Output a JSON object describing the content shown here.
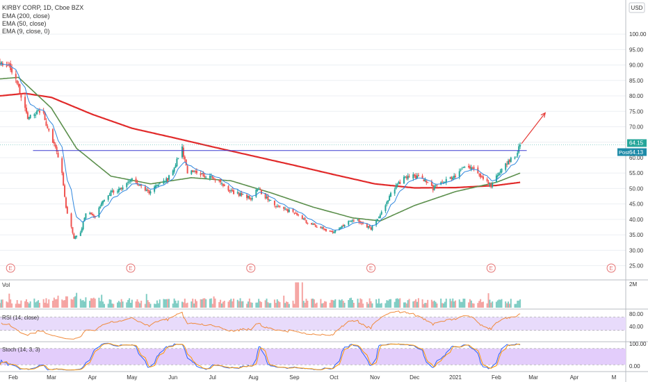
{
  "legend": {
    "title": "KIRBY CORP, 1D, Cboe BZX",
    "ema200": "EMA (200, close)",
    "ema50": "EMA (50, close)",
    "ema9": "EMA (9, close, 0)"
  },
  "price_axis": {
    "currency": "USD",
    "ticks": [
      "100.00",
      "95.00",
      "90.00",
      "85.00",
      "80.00",
      "75.00",
      "70.00",
      "65.00",
      "60.00",
      "55.00",
      "50.00",
      "45.00",
      "40.00",
      "35.00",
      "30.00",
      "25.00"
    ],
    "last_price_label": "64.15",
    "post_badge_prefix": "Post",
    "post_badge_value": "64.13"
  },
  "volume_pane": {
    "label": "Vol",
    "axis_label": "2M"
  },
  "rsi_pane": {
    "label": "RSI (14, close)",
    "ticks": [
      "80.00",
      "40.00"
    ]
  },
  "stoch_pane": {
    "label": "Stoch (14, 3, 3)",
    "ticks": [
      "100.00",
      "0.00"
    ]
  },
  "time_axis": {
    "labels": [
      "Feb",
      "Mar",
      "Apr",
      "May",
      "Jun",
      "Jul",
      "Aug",
      "Sep",
      "Oct",
      "Nov",
      "Dec",
      "2021",
      "Feb",
      "Mar",
      "Apr",
      "M"
    ]
  },
  "earnings_marker": "E",
  "colors": {
    "up": "#26a69a",
    "down": "#ef5350",
    "volume_up": "#7fcdc4",
    "volume_down": "#f5a3a1",
    "ema200": "#e12a2a",
    "ema50": "#5b8f4c",
    "ema9": "#2e86de",
    "resistance": "#3b3bd1",
    "arrow": "#e53935",
    "rsi_line": "#f08a3c",
    "rsi_band": "#e8dbfb",
    "stoch_band": "#e3cdfb",
    "stoch_k": "#2962ff",
    "stoch_d": "#ff9800",
    "grid": "#eceff3",
    "axis_text": "#333333",
    "post_badge": "#1e8ba8"
  },
  "chart_data": {
    "type": "candlestick",
    "title": "KIRBY CORP, 1D, Cboe BZX",
    "y_unit": "USD",
    "ylim": [
      24,
      107
    ],
    "x_range": [
      "2020-01-22",
      "2021-05-10"
    ],
    "price_keyframes": [
      {
        "date": "2020-01-22",
        "close": 91
      },
      {
        "date": "2020-01-27",
        "close": 90.5
      },
      {
        "date": "2020-02-03",
        "close": 86
      },
      {
        "date": "2020-02-07",
        "close": 80
      },
      {
        "date": "2020-02-12",
        "close": 73
      },
      {
        "date": "2020-02-18",
        "close": 74.5
      },
      {
        "date": "2020-02-24",
        "close": 74
      },
      {
        "date": "2020-02-28",
        "close": 68
      },
      {
        "date": "2020-03-05",
        "close": 62
      },
      {
        "date": "2020-03-09",
        "close": 55
      },
      {
        "date": "2020-03-12",
        "close": 44
      },
      {
        "date": "2020-03-18",
        "close": 34
      },
      {
        "date": "2020-03-23",
        "close": 36
      },
      {
        "date": "2020-03-27",
        "close": 42
      },
      {
        "date": "2020-04-03",
        "close": 41
      },
      {
        "date": "2020-04-09",
        "close": 46
      },
      {
        "date": "2020-04-16",
        "close": 49
      },
      {
        "date": "2020-04-23",
        "close": 50
      },
      {
        "date": "2020-04-30",
        "close": 53
      },
      {
        "date": "2020-05-07",
        "close": 51
      },
      {
        "date": "2020-05-14",
        "close": 49
      },
      {
        "date": "2020-05-21",
        "close": 51
      },
      {
        "date": "2020-05-28",
        "close": 53
      },
      {
        "date": "2020-06-03",
        "close": 58
      },
      {
        "date": "2020-06-08",
        "close": 63
      },
      {
        "date": "2020-06-12",
        "close": 55
      },
      {
        "date": "2020-06-19",
        "close": 55.5
      },
      {
        "date": "2020-06-26",
        "close": 54
      },
      {
        "date": "2020-07-06",
        "close": 53
      },
      {
        "date": "2020-07-14",
        "close": 49
      },
      {
        "date": "2020-07-22",
        "close": 48
      },
      {
        "date": "2020-07-30",
        "close": 47
      },
      {
        "date": "2020-08-05",
        "close": 50
      },
      {
        "date": "2020-08-10",
        "close": 47
      },
      {
        "date": "2020-08-20",
        "close": 44
      },
      {
        "date": "2020-09-01",
        "close": 42
      },
      {
        "date": "2020-09-11",
        "close": 39
      },
      {
        "date": "2020-09-21",
        "close": 37
      },
      {
        "date": "2020-09-30",
        "close": 36
      },
      {
        "date": "2020-10-08",
        "close": 38
      },
      {
        "date": "2020-10-15",
        "close": 40
      },
      {
        "date": "2020-10-22",
        "close": 39
      },
      {
        "date": "2020-10-29",
        "close": 37
      },
      {
        "date": "2020-11-05",
        "close": 41
      },
      {
        "date": "2020-11-10",
        "close": 46
      },
      {
        "date": "2020-11-16",
        "close": 50
      },
      {
        "date": "2020-11-24",
        "close": 54
      },
      {
        "date": "2020-12-01",
        "close": 54
      },
      {
        "date": "2020-12-08",
        "close": 53
      },
      {
        "date": "2020-12-15",
        "close": 50
      },
      {
        "date": "2020-12-22",
        "close": 52
      },
      {
        "date": "2020-12-31",
        "close": 54
      },
      {
        "date": "2021-01-08",
        "close": 57
      },
      {
        "date": "2021-01-14",
        "close": 57
      },
      {
        "date": "2021-01-22",
        "close": 53
      },
      {
        "date": "2021-01-28",
        "close": 51
      },
      {
        "date": "2021-02-03",
        "close": 55
      },
      {
        "date": "2021-02-10",
        "close": 59
      },
      {
        "date": "2021-02-16",
        "close": 61
      },
      {
        "date": "2021-02-19",
        "close": 64.15
      }
    ],
    "ema200_keyframes": [
      {
        "date": "2020-01-22",
        "value": 80
      },
      {
        "date": "2020-02-10",
        "value": 80.8
      },
      {
        "date": "2020-03-01",
        "value": 79.5
      },
      {
        "date": "2020-04-01",
        "value": 74
      },
      {
        "date": "2020-05-01",
        "value": 69.5
      },
      {
        "date": "2020-06-01",
        "value": 66.5
      },
      {
        "date": "2020-07-01",
        "value": 63.5
      },
      {
        "date": "2020-08-01",
        "value": 60.5
      },
      {
        "date": "2020-09-01",
        "value": 57.5
      },
      {
        "date": "2020-10-01",
        "value": 54.5
      },
      {
        "date": "2020-11-01",
        "value": 51.5
      },
      {
        "date": "2020-12-01",
        "value": 50.2
      },
      {
        "date": "2021-01-01",
        "value": 50.3
      },
      {
        "date": "2021-02-01",
        "value": 51
      },
      {
        "date": "2021-02-19",
        "value": 52
      }
    ],
    "ema50_keyframes": [
      {
        "date": "2020-01-22",
        "value": 85.5
      },
      {
        "date": "2020-02-05",
        "value": 86
      },
      {
        "date": "2020-03-01",
        "value": 76
      },
      {
        "date": "2020-03-20",
        "value": 63
      },
      {
        "date": "2020-04-15",
        "value": 54
      },
      {
        "date": "2020-05-15",
        "value": 51.5
      },
      {
        "date": "2020-06-15",
        "value": 53.5
      },
      {
        "date": "2020-07-15",
        "value": 52.5
      },
      {
        "date": "2020-08-15",
        "value": 48.5
      },
      {
        "date": "2020-09-15",
        "value": 44
      },
      {
        "date": "2020-10-15",
        "value": 40.5
      },
      {
        "date": "2020-11-05",
        "value": 39.5
      },
      {
        "date": "2020-12-01",
        "value": 44.5
      },
      {
        "date": "2021-01-01",
        "value": 49
      },
      {
        "date": "2021-02-01",
        "value": 52
      },
      {
        "date": "2021-02-19",
        "value": 55
      }
    ],
    "resistance_level": 62.3,
    "resistance_start": "2020-02-16",
    "resistance_end": "2021-02-24",
    "arrow": {
      "from_date": "2021-02-20",
      "from_value": 64.5,
      "to_date": "2021-03-10",
      "to_value": 74.5
    },
    "earnings_dates": [
      "2020-01-30",
      "2020-04-30",
      "2020-07-30",
      "2020-10-29",
      "2021-01-28",
      "2021-04-29"
    ],
    "volume_axis_max": 2.5,
    "rsi_ylim": [
      0,
      90
    ],
    "rsi_band": [
      30,
      70
    ],
    "stoch_band": [
      20,
      80
    ]
  }
}
